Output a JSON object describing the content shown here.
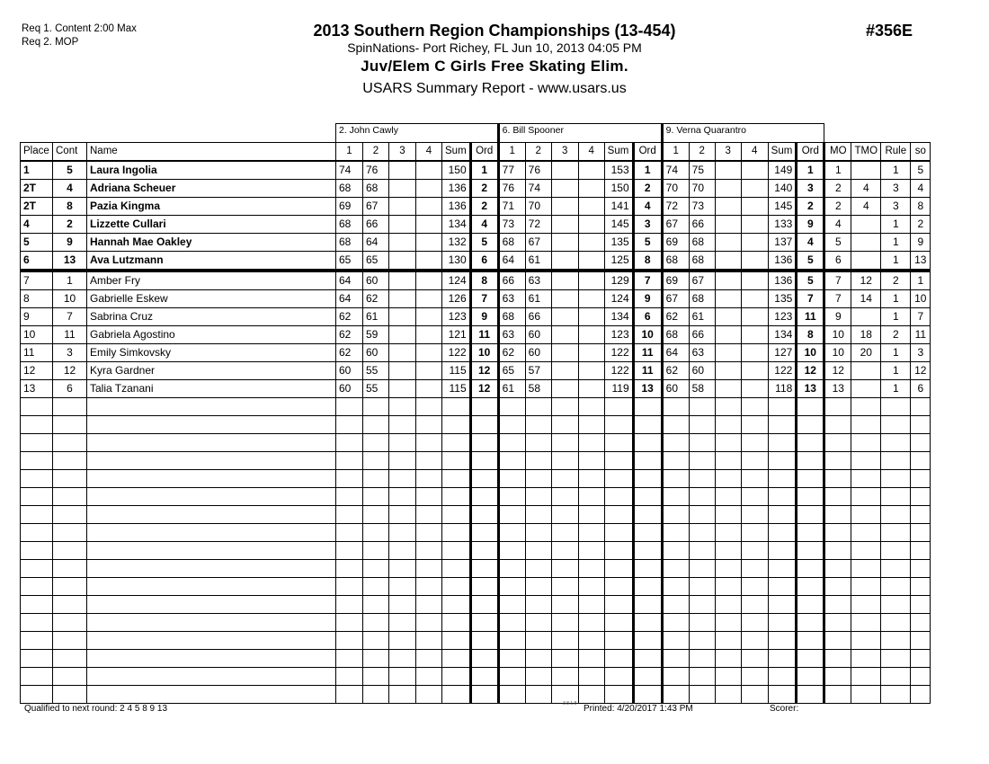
{
  "header": {
    "req1": "Req 1.  Content 2:00 Max",
    "req2": "Req 2.  MOP",
    "title": "2013 Southern Region Championships (13-454)",
    "subtitle": "SpinNations- Port Richey, FL  Jun 10, 2013  04:05 PM",
    "event": "Juv/Elem C Girls Free Skating  Elim.",
    "report": "USARS Summary Report - www.usars.us",
    "event_number": "#356E"
  },
  "judges": [
    "2.  John Cawly",
    "6.  Bill Spooner",
    "9.  Verna Quarantro"
  ],
  "columns": {
    "place": "Place",
    "cont": "Cont",
    "name": "Name",
    "marks": [
      "1",
      "2",
      "3",
      "4"
    ],
    "sum": "Sum",
    "ord": "Ord",
    "mo": "MO",
    "tmo": "TMO",
    "rule": "Rule",
    "so": "so"
  },
  "rows": [
    {
      "place": "1",
      "cont": "5",
      "name": "Laura Ingolia",
      "j": [
        [
          "74",
          "76",
          "150",
          "1"
        ],
        [
          "77",
          "76",
          "153",
          "1"
        ],
        [
          "74",
          "75",
          "149",
          "1"
        ]
      ],
      "mo": "1",
      "tmo": "",
      "rule": "1",
      "so": "5",
      "qualified": true
    },
    {
      "place": "2T",
      "cont": "4",
      "name": "Adriana Scheuer",
      "j": [
        [
          "68",
          "68",
          "136",
          "2"
        ],
        [
          "76",
          "74",
          "150",
          "2"
        ],
        [
          "70",
          "70",
          "140",
          "3"
        ]
      ],
      "mo": "2",
      "tmo": "4",
      "rule": "3",
      "so": "4",
      "qualified": true
    },
    {
      "place": "2T",
      "cont": "8",
      "name": "Pazia Kingma",
      "j": [
        [
          "69",
          "67",
          "136",
          "2"
        ],
        [
          "71",
          "70",
          "141",
          "4"
        ],
        [
          "72",
          "73",
          "145",
          "2"
        ]
      ],
      "mo": "2",
      "tmo": "4",
      "rule": "3",
      "so": "8",
      "qualified": true
    },
    {
      "place": "4",
      "cont": "2",
      "name": "Lizzette Cullari",
      "j": [
        [
          "68",
          "66",
          "134",
          "4"
        ],
        [
          "73",
          "72",
          "145",
          "3"
        ],
        [
          "67",
          "66",
          "133",
          "9"
        ]
      ],
      "mo": "4",
      "tmo": "",
      "rule": "1",
      "so": "2",
      "qualified": true
    },
    {
      "place": "5",
      "cont": "9",
      "name": "Hannah Mae Oakley",
      "j": [
        [
          "68",
          "64",
          "132",
          "5"
        ],
        [
          "68",
          "67",
          "135",
          "5"
        ],
        [
          "69",
          "68",
          "137",
          "4"
        ]
      ],
      "mo": "5",
      "tmo": "",
      "rule": "1",
      "so": "9",
      "qualified": true
    },
    {
      "place": "6",
      "cont": "13",
      "name": "Ava Lutzmann",
      "j": [
        [
          "65",
          "65",
          "130",
          "6"
        ],
        [
          "64",
          "61",
          "125",
          "8"
        ],
        [
          "68",
          "68",
          "136",
          "5"
        ]
      ],
      "mo": "6",
      "tmo": "",
      "rule": "1",
      "so": "13",
      "qualified": true
    },
    {
      "place": "7",
      "cont": "1",
      "name": "Amber Fry",
      "j": [
        [
          "64",
          "60",
          "124",
          "8"
        ],
        [
          "66",
          "63",
          "129",
          "7"
        ],
        [
          "69",
          "67",
          "136",
          "5"
        ]
      ],
      "mo": "7",
      "tmo": "12",
      "rule": "2",
      "so": "1",
      "qualified": false
    },
    {
      "place": "8",
      "cont": "10",
      "name": "Gabrielle Eskew",
      "j": [
        [
          "64",
          "62",
          "126",
          "7"
        ],
        [
          "63",
          "61",
          "124",
          "9"
        ],
        [
          "67",
          "68",
          "135",
          "7"
        ]
      ],
      "mo": "7",
      "tmo": "14",
      "rule": "1",
      "so": "10",
      "qualified": false
    },
    {
      "place": "9",
      "cont": "7",
      "name": "Sabrina Cruz",
      "j": [
        [
          "62",
          "61",
          "123",
          "9"
        ],
        [
          "68",
          "66",
          "134",
          "6"
        ],
        [
          "62",
          "61",
          "123",
          "11"
        ]
      ],
      "mo": "9",
      "tmo": "",
      "rule": "1",
      "so": "7",
      "qualified": false
    },
    {
      "place": "10",
      "cont": "11",
      "name": "Gabriela Agostino",
      "j": [
        [
          "62",
          "59",
          "121",
          "11"
        ],
        [
          "63",
          "60",
          "123",
          "10"
        ],
        [
          "68",
          "66",
          "134",
          "8"
        ]
      ],
      "mo": "10",
      "tmo": "18",
      "rule": "2",
      "so": "11",
      "qualified": false
    },
    {
      "place": "11",
      "cont": "3",
      "name": "Emily Simkovsky",
      "j": [
        [
          "62",
          "60",
          "122",
          "10"
        ],
        [
          "62",
          "60",
          "122",
          "11"
        ],
        [
          "64",
          "63",
          "127",
          "10"
        ]
      ],
      "mo": "10",
      "tmo": "20",
      "rule": "1",
      "so": "3",
      "qualified": false
    },
    {
      "place": "12",
      "cont": "12",
      "name": "Kyra Gardner",
      "j": [
        [
          "60",
          "55",
          "115",
          "12"
        ],
        [
          "65",
          "57",
          "122",
          "11"
        ],
        [
          "62",
          "60",
          "122",
          "12"
        ]
      ],
      "mo": "12",
      "tmo": "",
      "rule": "1",
      "so": "12",
      "qualified": false
    },
    {
      "place": "13",
      "cont": "6",
      "name": "Talia Tzanani",
      "j": [
        [
          "60",
          "55",
          "115",
          "12"
        ],
        [
          "61",
          "58",
          "119",
          "13"
        ],
        [
          "60",
          "58",
          "118",
          "13"
        ]
      ],
      "mo": "13",
      "tmo": "",
      "rule": "1",
      "so": "6",
      "qualified": false
    }
  ],
  "footer": {
    "qualified": "Qualified to next round:   2 4 5 8 9 13",
    "version": "3.8.1.8",
    "printed": "Printed:  4/20/2017  1:43 PM",
    "scorer": "Scorer:"
  }
}
